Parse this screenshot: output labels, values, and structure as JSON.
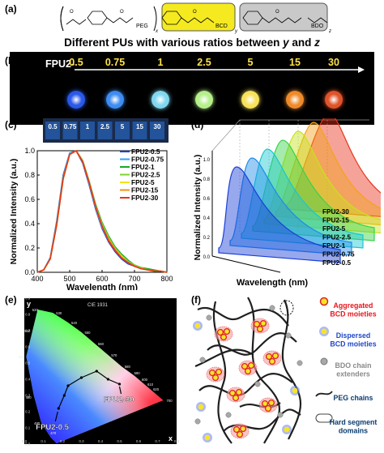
{
  "panels": {
    "a": {
      "label": "(a)",
      "caption": "Different PUs with various ratios between y and z",
      "caption_parts": [
        "Different PUs with various ratios between ",
        "y",
        " and ",
        "z"
      ],
      "segment_labels": {
        "peg": "PEG",
        "bcd": "BCD",
        "bdo": "BDO"
      },
      "subscripts": {
        "x": "x",
        "y": "y",
        "z": "z"
      },
      "colors": {
        "bcd_block": "#f5ea1f",
        "bdo_block": "#c9c9c9"
      }
    },
    "b": {
      "label": "(b)",
      "prefix": "FPU2-",
      "ratios": [
        "0.5",
        "0.75",
        "1",
        "2.5",
        "5",
        "15",
        "30"
      ],
      "dot_colors": [
        "#2a58e8",
        "#3d8cf2",
        "#7fd8f0",
        "#b5f08a",
        "#f7e25a",
        "#ef8a2a",
        "#e0532a"
      ]
    },
    "c": {
      "label": "(c)",
      "vial_labels": [
        "0.5",
        "0.75",
        "1",
        "2.5",
        "5",
        "15",
        "30"
      ],
      "xlabel": "Wavelength (nm)",
      "ylabel": "Normalized Intensity (a.u.)",
      "xticks": [
        "400",
        "500",
        "600",
        "700",
        "800"
      ],
      "yticks": [
        "0.0",
        "0.2",
        "0.4",
        "0.6",
        "0.8",
        "1.0"
      ],
      "legend": [
        "FPU2-0.5",
        "FPU2-0.75",
        "FPU2-1",
        "FPU2-2.5",
        "FPU2-5",
        "FPU2-15",
        "FPU2-30"
      ]
    },
    "d": {
      "label": "(d)",
      "xlabel": "Wavelength (nm)",
      "ylabel": "Normalized Intensity (a.u.)",
      "yticks": [
        "0.0",
        "0.2",
        "0.4",
        "0.6",
        "0.8",
        "1.0"
      ],
      "series_labels": [
        "FPU2-30",
        "FPU2-15",
        "FPU2-5",
        "FPU2-2.5",
        "FPU2-1",
        "FPU2-0.75",
        "FPU2-0.5"
      ]
    },
    "e": {
      "label": "(e)",
      "cie_title": "CIE 1931",
      "axis_y": "y",
      "axis_x": "x",
      "start_label": "FPU2-0.5",
      "end_label": "FPU2-30",
      "x_ticks": [
        "0.0",
        "0.1",
        "0.2",
        "0.3",
        "0.4",
        "0.5",
        "0.6",
        "0.7",
        "0.8"
      ],
      "y_ticks": [
        "0.0",
        "0.1",
        "0.2",
        "0.3",
        "0.4",
        "0.5",
        "0.6",
        "0.7",
        "0.8",
        "0.9"
      ],
      "wl_ticks": [
        "470",
        "480",
        "490",
        "500",
        "510",
        "520",
        "530",
        "540",
        "550",
        "560",
        "570",
        "580",
        "590",
        "600",
        "610",
        "620",
        "700"
      ]
    },
    "f": {
      "label": "(f)",
      "legend": [
        {
          "text": "Aggregated BCD moieties",
          "lines": [
            "Aggregated",
            "BCD moieties"
          ],
          "color": "#e8141c",
          "icon": "aggregated-dot-icon"
        },
        {
          "text": "Dispersed BCD moieties",
          "lines": [
            "Dispersed",
            "BCD moieties"
          ],
          "color": "#1f47c8",
          "icon": "dispersed-dot-icon"
        },
        {
          "text": "BDO chain extenders",
          "lines": [
            "BDO chain",
            "extenders"
          ],
          "color": "#8a8a8a",
          "icon": "grey-sphere-icon"
        },
        {
          "text": "PEG chains",
          "lines": [
            "PEG chains"
          ],
          "color": "#0b3c6e",
          "icon": "curve-icon"
        },
        {
          "text": "Hard segment domains",
          "lines": [
            "Hard segment",
            "domains"
          ],
          "color": "#0b3c6e",
          "icon": "rounded-rect-icon"
        }
      ]
    }
  },
  "chart_data": [
    {
      "type": "line",
      "panel": "c",
      "xlabel": "Wavelength (nm)",
      "ylabel": "Normalized Intensity (a.u.)",
      "xlim": [
        400,
        800
      ],
      "ylim": [
        0,
        1.0
      ],
      "x": [
        400,
        420,
        440,
        460,
        480,
        500,
        520,
        540,
        560,
        580,
        600,
        620,
        640,
        660,
        680,
        700,
        720,
        740,
        760,
        780,
        800
      ],
      "series": [
        {
          "name": "FPU2-0.5",
          "color": "#1a3fd6",
          "values": [
            0.0,
            0.02,
            0.12,
            0.42,
            0.8,
            0.98,
            1.0,
            0.9,
            0.72,
            0.52,
            0.36,
            0.25,
            0.17,
            0.11,
            0.07,
            0.05,
            0.03,
            0.02,
            0.01,
            0.01,
            0.0
          ]
        },
        {
          "name": "FPU2-0.75",
          "color": "#2fa3ff",
          "values": [
            0.0,
            0.02,
            0.12,
            0.41,
            0.79,
            0.98,
            1.0,
            0.91,
            0.73,
            0.53,
            0.37,
            0.26,
            0.18,
            0.12,
            0.08,
            0.05,
            0.03,
            0.02,
            0.01,
            0.01,
            0.0
          ]
        },
        {
          "name": "FPU2-1",
          "color": "#1aa82a",
          "values": [
            0.0,
            0.02,
            0.11,
            0.4,
            0.78,
            0.97,
            1.0,
            0.92,
            0.75,
            0.56,
            0.41,
            0.3,
            0.21,
            0.15,
            0.1,
            0.06,
            0.04,
            0.03,
            0.02,
            0.01,
            0.0
          ]
        },
        {
          "name": "FPU2-2.5",
          "color": "#82d230",
          "values": [
            0.0,
            0.02,
            0.11,
            0.39,
            0.77,
            0.97,
            1.0,
            0.92,
            0.75,
            0.55,
            0.4,
            0.29,
            0.2,
            0.14,
            0.09,
            0.06,
            0.04,
            0.02,
            0.01,
            0.01,
            0.0
          ]
        },
        {
          "name": "FPU2-5",
          "color": "#f4e21a",
          "values": [
            0.0,
            0.02,
            0.11,
            0.39,
            0.77,
            0.97,
            1.0,
            0.91,
            0.74,
            0.54,
            0.38,
            0.27,
            0.19,
            0.13,
            0.08,
            0.05,
            0.03,
            0.02,
            0.01,
            0.01,
            0.0
          ]
        },
        {
          "name": "FPU2-15",
          "color": "#f0901a",
          "values": [
            0.0,
            0.02,
            0.11,
            0.39,
            0.77,
            0.97,
            1.0,
            0.91,
            0.74,
            0.54,
            0.38,
            0.27,
            0.19,
            0.12,
            0.08,
            0.05,
            0.03,
            0.02,
            0.01,
            0.01,
            0.0
          ]
        },
        {
          "name": "FPU2-30",
          "color": "#e8341a",
          "values": [
            0.0,
            0.02,
            0.11,
            0.39,
            0.77,
            0.97,
            1.0,
            0.91,
            0.74,
            0.54,
            0.38,
            0.26,
            0.18,
            0.12,
            0.08,
            0.05,
            0.03,
            0.02,
            0.01,
            0.01,
            0.0
          ]
        }
      ]
    },
    {
      "type": "area",
      "panel": "d",
      "xlabel": "Wavelength (nm)",
      "ylabel": "Normalized Intensity (a.u.)",
      "ylim": [
        0,
        1.0
      ],
      "series": [
        {
          "name": "FPU2-0.5",
          "color": "#1a3fd6",
          "peak_nm": 480
        },
        {
          "name": "FPU2-0.75",
          "color": "#1e8be8",
          "peak_nm": 500
        },
        {
          "name": "FPU2-1",
          "color": "#19c7d0",
          "peak_nm": 520
        },
        {
          "name": "FPU2-2.5",
          "color": "#37d24a",
          "peak_nm": 560
        },
        {
          "name": "FPU2-5",
          "color": "#c8e21a",
          "peak_nm": 600
        },
        {
          "name": "FPU2-15",
          "color": "#f4a21a",
          "peak_nm": 620
        },
        {
          "name": "FPU2-30",
          "color": "#e8341a",
          "peak_nm": 640
        }
      ]
    },
    {
      "type": "scatter",
      "panel": "e",
      "xlabel": "x",
      "ylabel": "y",
      "xlim": [
        0,
        0.8
      ],
      "ylim": [
        0,
        0.9
      ],
      "points": [
        {
          "x": 0.18,
          "y": 0.22
        },
        {
          "x": 0.21,
          "y": 0.3
        },
        {
          "x": 0.23,
          "y": 0.36
        },
        {
          "x": 0.3,
          "y": 0.41
        },
        {
          "x": 0.38,
          "y": 0.45
        },
        {
          "x": 0.44,
          "y": 0.4
        },
        {
          "x": 0.5,
          "y": 0.37
        }
      ]
    }
  ]
}
